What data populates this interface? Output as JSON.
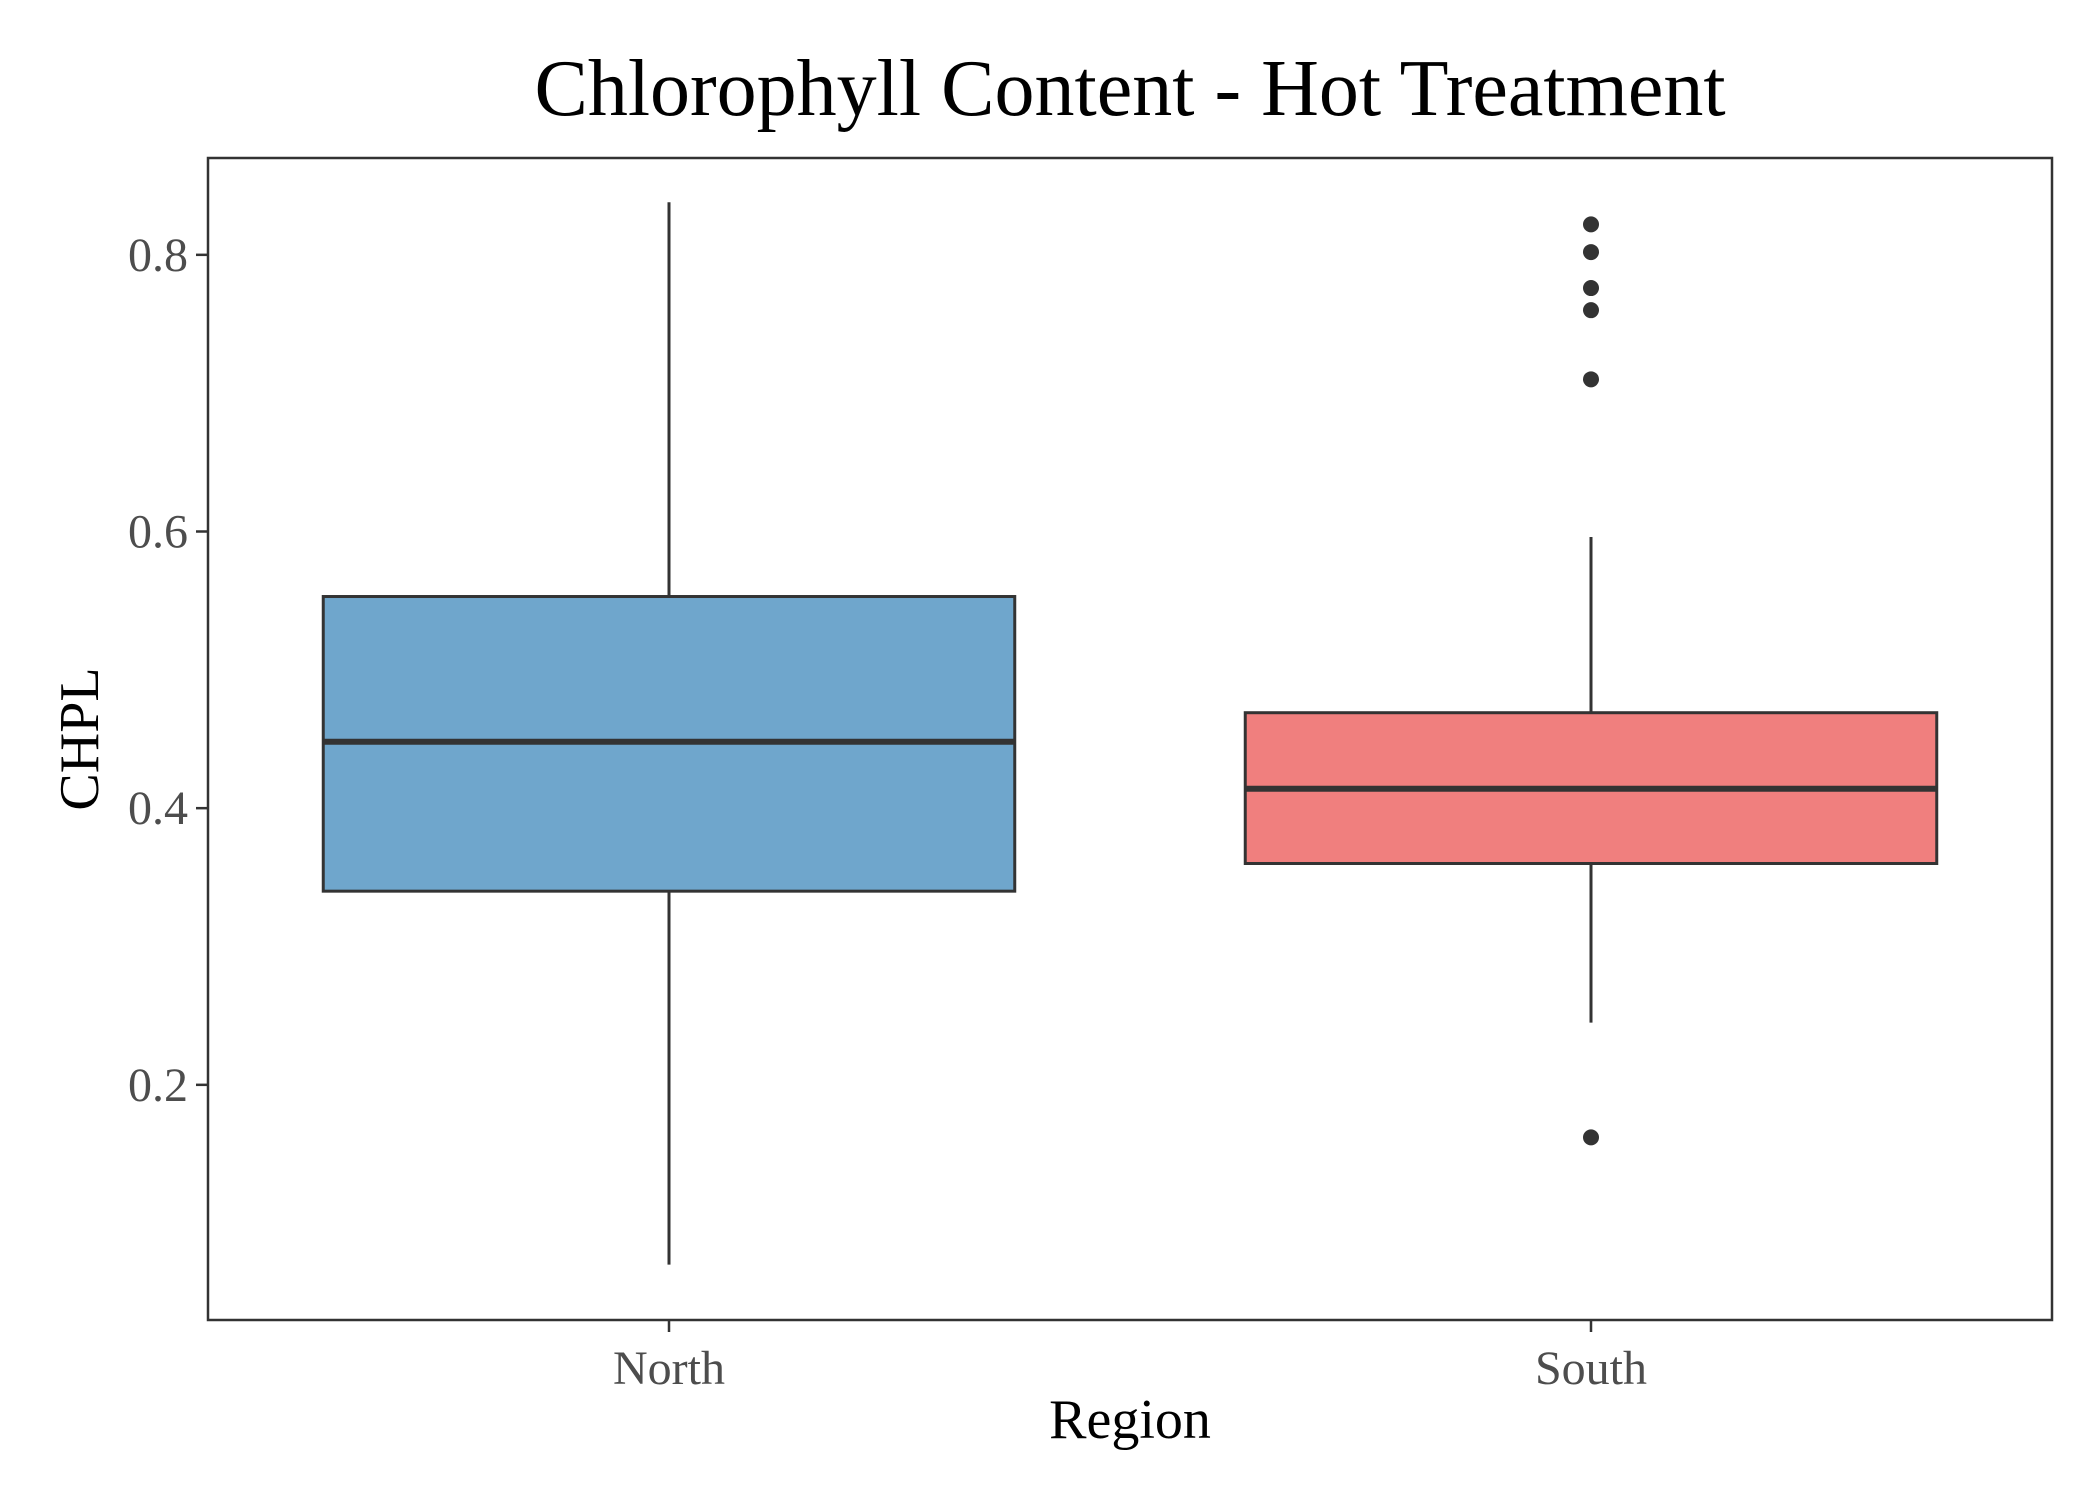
{
  "chart_data": {
    "type": "boxplot",
    "title": "Chlorophyll Content - Hot Treatment",
    "xlabel": "Region",
    "ylabel": "CHPL",
    "ylim": [
      0.03,
      0.87
    ],
    "yticks": [
      0.2,
      0.4,
      0.6,
      0.8
    ],
    "ytick_labels": [
      "0.2",
      "0.4",
      "0.6",
      "0.8"
    ],
    "categories": [
      "North",
      "South"
    ],
    "grid": false,
    "legend": "none",
    "boxes": [
      {
        "category": "North",
        "whisker_low": 0.07,
        "q1": 0.34,
        "median": 0.448,
        "q3": 0.553,
        "whisker_high": 0.838,
        "outliers": [],
        "color": "#6fa6cc"
      },
      {
        "category": "South",
        "whisker_low": 0.245,
        "q1": 0.36,
        "median": 0.414,
        "q3": 0.469,
        "whisker_high": 0.596,
        "outliers": [
          0.822,
          0.802,
          0.776,
          0.76,
          0.71,
          0.162
        ],
        "color": "#f07f7e"
      }
    ],
    "stroke_color": "#333333"
  }
}
